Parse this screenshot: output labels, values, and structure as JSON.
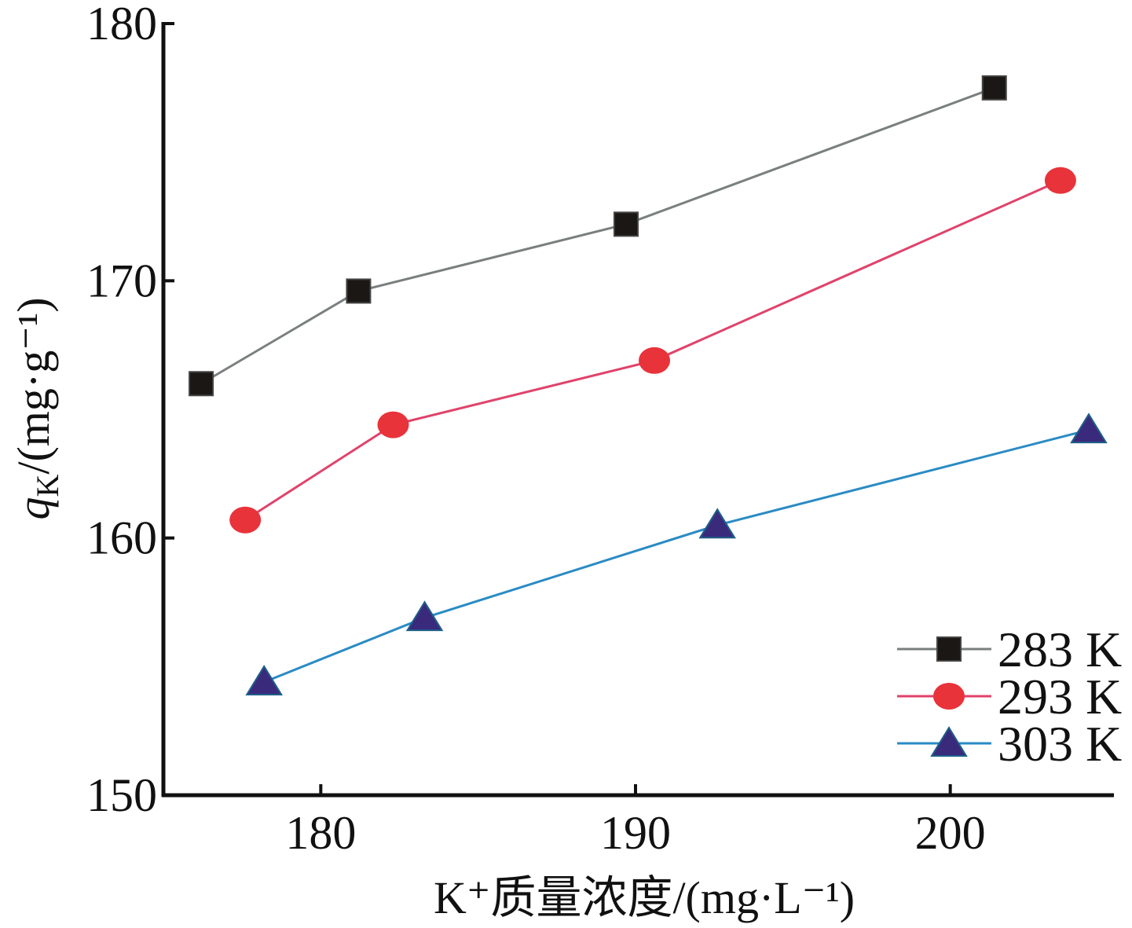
{
  "chart_data": {
    "type": "line",
    "xlabel": "K⁺质量浓度/(mg·L⁻¹)",
    "ylabel_main": "q",
    "ylabel_sub": "K",
    "ylabel_rest": "/(mg·g⁻¹)",
    "xlim": [
      175,
      205.2
    ],
    "ylim": [
      150,
      180
    ],
    "xticks": [
      180,
      190,
      200
    ],
    "yticks": [
      150,
      160,
      170,
      180
    ],
    "grid": false,
    "legend_position": "bottom-right",
    "series": [
      {
        "name": "283 K",
        "marker": "square",
        "line_color": "#7a7f7f",
        "marker_color": "#1b1714",
        "x": [
          176.2,
          181.2,
          189.7,
          201.4
        ],
        "y": [
          166.0,
          169.6,
          172.2,
          177.5
        ]
      },
      {
        "name": "293 K",
        "marker": "circle",
        "line_color": "#e0436a",
        "marker_color": "#e8333a",
        "x": [
          177.6,
          182.3,
          190.6,
          203.5
        ],
        "y": [
          160.7,
          164.4,
          166.9,
          173.9
        ]
      },
      {
        "name": "303 K",
        "marker": "triangle",
        "line_color": "#2a8bc4",
        "marker_color": "#3a2a7c",
        "x": [
          178.2,
          183.3,
          192.6,
          204.4
        ],
        "y": [
          154.4,
          156.9,
          160.5,
          164.2
        ]
      }
    ]
  }
}
